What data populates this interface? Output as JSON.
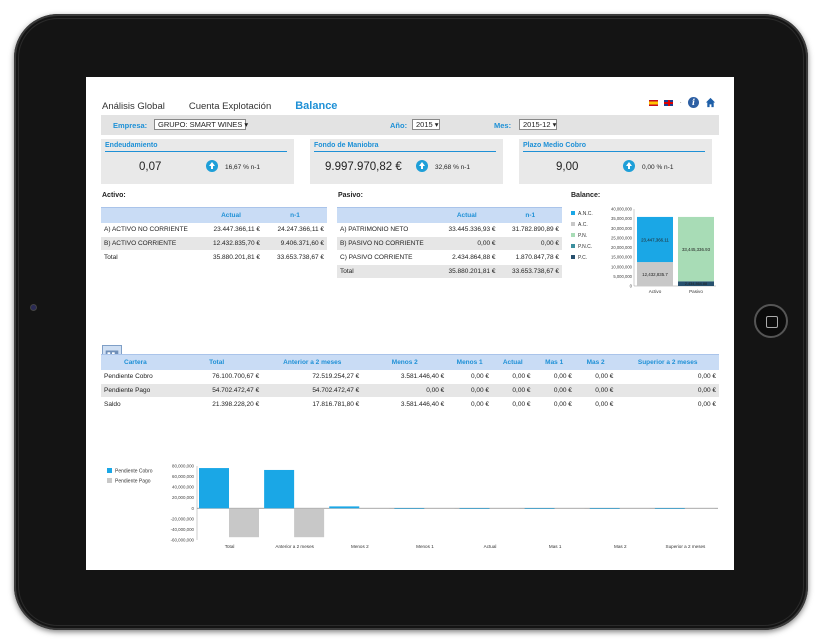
{
  "tabs": [
    {
      "label": "Análisis Global"
    },
    {
      "label": "Cuenta Explotación"
    },
    {
      "label": "Balance"
    }
  ],
  "filters": {
    "empresa_label": "Empresa:",
    "empresa_value": "GRUPO: SMART WINES",
    "anio_label": "Año:",
    "anio_value": "2015",
    "mes_label": "Mes:",
    "mes_value": "2015-12"
  },
  "kpis": [
    {
      "title": "Endeudamiento",
      "value": "0,07",
      "pct": "16,67 % n-1"
    },
    {
      "title": "Fondo de Maniobra",
      "value": "9.997.970,82 €",
      "pct": "32,68 % n-1"
    },
    {
      "title": "Plazo Medio Cobro",
      "value": "9,00",
      "pct": "0,00 % n-1"
    }
  ],
  "activo": {
    "heading": "Activo:",
    "columns": [
      "",
      "Actual",
      "n-1"
    ],
    "rows": [
      [
        "A) ACTIVO NO CORRIENTE",
        "23.447.366,11 €",
        "24.247.366,11 €"
      ],
      [
        "B) ACTIVO CORRIENTE",
        "12.432.835,70 €",
        "9.406.371,60 €"
      ],
      [
        "Total",
        "35.880.201,81 €",
        "33.653.738,67 €"
      ]
    ]
  },
  "pasivo": {
    "heading": "Pasivo:",
    "columns": [
      "",
      "Actual",
      "n-1"
    ],
    "rows": [
      [
        "A) PATRIMONIO NETO",
        "33.445.336,93 €",
        "31.782.890,89 €"
      ],
      [
        "B) PASIVO NO CORRIENTE",
        "0,00 €",
        "0,00 €"
      ],
      [
        "C) PASIVO CORRIENTE",
        "2.434.864,88 €",
        "1.870.847,78 €"
      ],
      [
        "Total",
        "35.880.201,81 €",
        "33.653.738,67 €"
      ]
    ]
  },
  "balance": {
    "heading": "Balance:",
    "legend": [
      "A.N.C.",
      "A.C.",
      "P.N.",
      "P.N.C.",
      "P.C."
    ],
    "colors": [
      "#1aa7e6",
      "#c8c8c8",
      "#a8dcb6",
      "#3c8f9e",
      "#27506e"
    ],
    "yticks": [
      "40,000,000",
      "35,000,000",
      "30,000,000",
      "25,000,000",
      "20,000,000",
      "15,000,000",
      "10,000,000",
      "5,000,000",
      "0"
    ],
    "bars": [
      {
        "label": "Activo",
        "labels": [
          "23,447,366.11",
          "12,432,835.7"
        ]
      },
      {
        "label": "Pasivo",
        "labels": [
          "33,445,336.93",
          "2,434,864.88"
        ]
      }
    ]
  },
  "chart_data": [
    {
      "type": "bar",
      "stacked": true,
      "categories": [
        "Activo",
        "Pasivo"
      ],
      "series": [
        {
          "name": "A.N.C.",
          "values": [
            23447366.11,
            0
          ]
        },
        {
          "name": "A.C.",
          "values": [
            12432835.7,
            0
          ]
        },
        {
          "name": "P.N.",
          "values": [
            0,
            33445336.93
          ]
        },
        {
          "name": "P.N.C.",
          "values": [
            0,
            0
          ]
        },
        {
          "name": "P.C.",
          "values": [
            0,
            2434864.88
          ]
        }
      ],
      "ylim": [
        0,
        40000000
      ],
      "legend": "left"
    },
    {
      "type": "bar",
      "categories": [
        "Total",
        "Anterior a 2 meses",
        "Menos 2",
        "Menos 1",
        "Actual",
        "Mas 1",
        "Mas 2",
        "Superior a 2 meses"
      ],
      "series": [
        {
          "name": "Pendiente Cobro",
          "values": [
            76100700.67,
            72519254.27,
            3581446.4,
            0,
            0,
            0,
            0,
            0
          ]
        },
        {
          "name": "Pendiente Pago",
          "values": [
            -54702472.47,
            -54702472.47,
            0,
            0,
            0,
            0,
            0,
            0
          ]
        }
      ],
      "ylim": [
        -60000000,
        80000000
      ],
      "yticks": [
        "80,000,000",
        "60,000,000",
        "40,000,000",
        "20,000,000",
        "0",
        "-20,000,000",
        "-40,000,000",
        "-60,000,000"
      ],
      "legend": "top-left",
      "colors": [
        "#1aa7e6",
        "#c8c8c8"
      ]
    }
  ],
  "cartera": {
    "columns": [
      "Cartera",
      "Total",
      "Anterior a 2 meses",
      "Menos 2",
      "Menos 1",
      "Actual",
      "Mas 1",
      "Mas 2",
      "Superior a 2 meses"
    ],
    "rows": [
      [
        "Pendiente Cobro",
        "76.100.700,67 €",
        "72.519.254,27 €",
        "3.581.446,40 €",
        "0,00 €",
        "0,00 €",
        "0,00 €",
        "0,00 €",
        "0,00 €"
      ],
      [
        "Pendiente Pago",
        "54.702.472,47 €",
        "54.702.472,47 €",
        "0,00 €",
        "0,00 €",
        "0,00 €",
        "0,00 €",
        "0,00 €",
        "0,00 €"
      ],
      [
        "Saldo",
        "21.398.228,20 €",
        "17.816.781,80 €",
        "3.581.446,40 €",
        "0,00 €",
        "0,00 €",
        "0,00 €",
        "0,00 €",
        "0,00 €"
      ]
    ]
  }
}
